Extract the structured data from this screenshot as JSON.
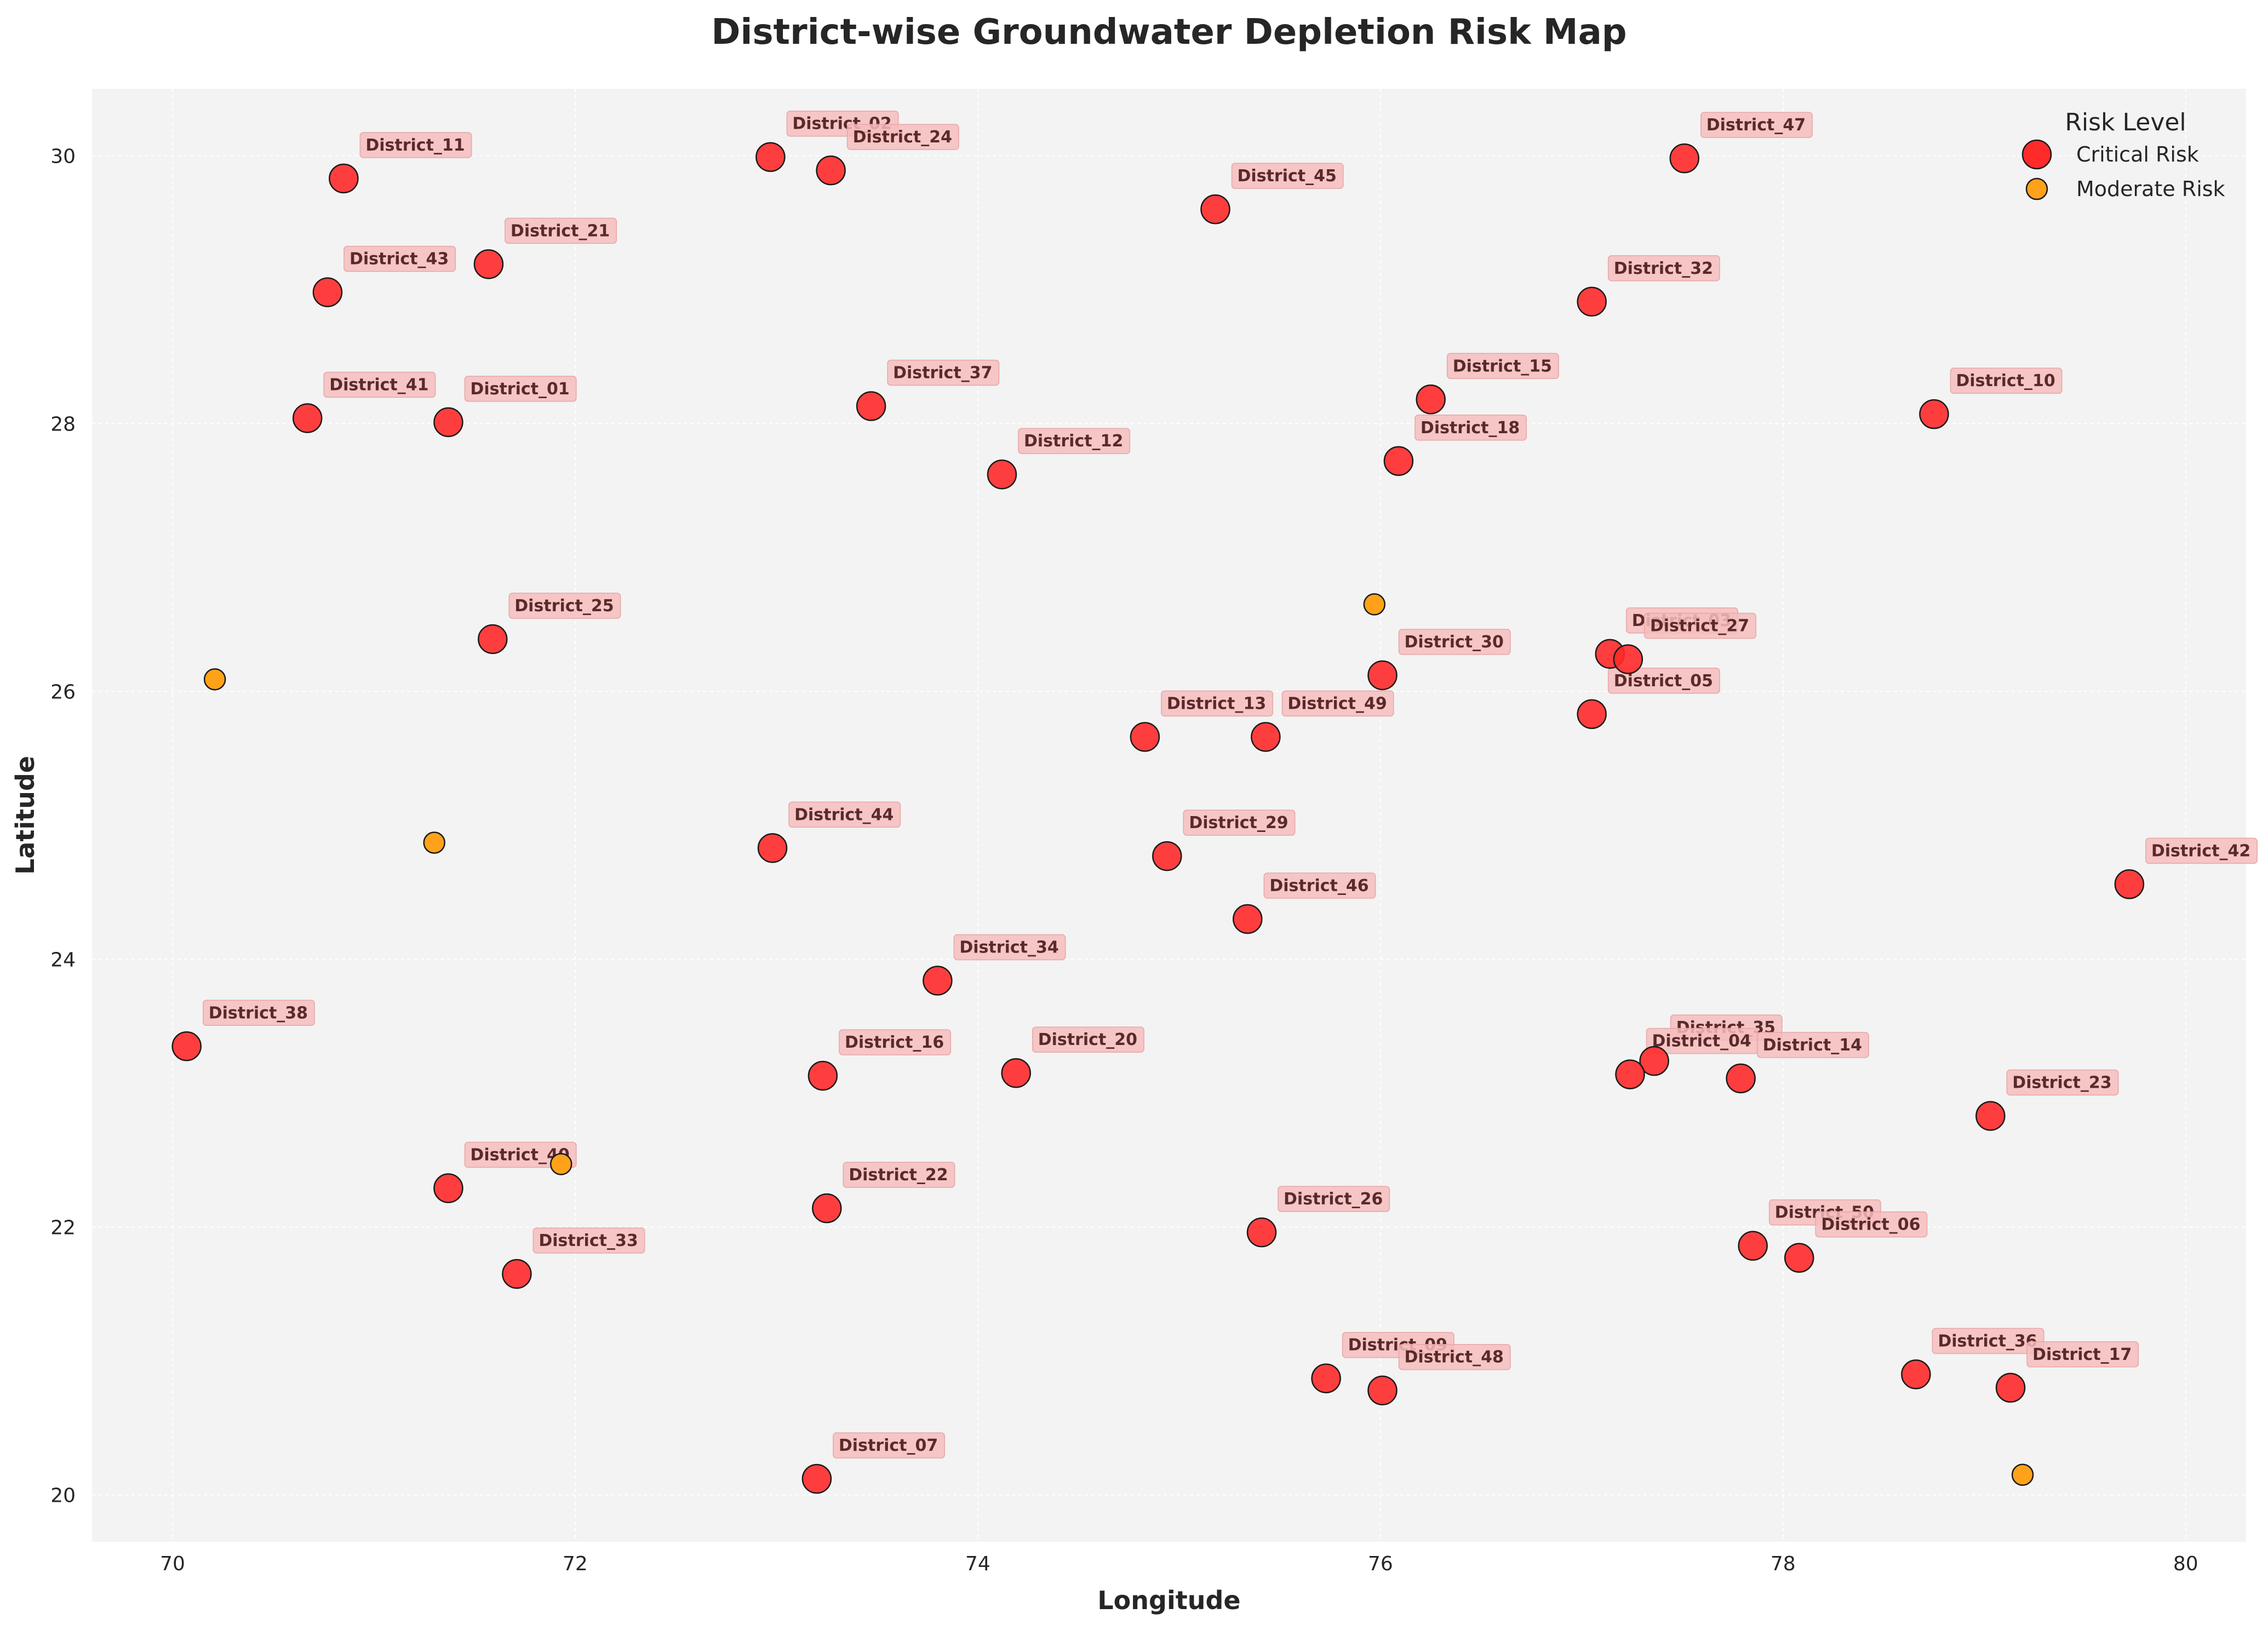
{
  "chart_data": {
    "type": "scatter",
    "title": "District-wise Groundwater Depletion Risk Map",
    "xlabel": "Longitude",
    "ylabel": "Latitude",
    "xlim": [
      69.6,
      80.3
    ],
    "ylim": [
      19.65,
      30.5
    ],
    "xticks": [
      70,
      72,
      74,
      76,
      78,
      80
    ],
    "yticks": [
      20,
      22,
      24,
      26,
      28,
      30
    ],
    "grid": true,
    "legend": {
      "title": "Risk Level",
      "position": "top-right"
    },
    "colors": {
      "critical": "#ff2a2a",
      "moderate": "#ffa21a",
      "background": "#f3f3f3",
      "label_box": "#f6bcbc"
    },
    "series": [
      {
        "name": "Critical Risk",
        "points": [
          {
            "label": "District_11",
            "x": 70.85,
            "y": 29.83
          },
          {
            "label": "District_02",
            "x": 72.97,
            "y": 29.99
          },
          {
            "label": "District_24",
            "x": 73.27,
            "y": 29.89
          },
          {
            "label": "District_43",
            "x": 70.77,
            "y": 28.98
          },
          {
            "label": "District_21",
            "x": 71.57,
            "y": 29.19
          },
          {
            "label": "District_41",
            "x": 70.67,
            "y": 28.04
          },
          {
            "label": "District_01",
            "x": 71.37,
            "y": 28.01
          },
          {
            "label": "District_37",
            "x": 73.47,
            "y": 28.13
          },
          {
            "label": "District_12",
            "x": 74.12,
            "y": 27.62
          },
          {
            "label": "District_45",
            "x": 75.18,
            "y": 29.6
          },
          {
            "label": "District_47",
            "x": 77.51,
            "y": 29.98
          },
          {
            "label": "District_32",
            "x": 77.05,
            "y": 28.91
          },
          {
            "label": "District_15",
            "x": 76.25,
            "y": 28.18
          },
          {
            "label": "District_18",
            "x": 76.09,
            "y": 27.72
          },
          {
            "label": "District_10",
            "x": 78.75,
            "y": 28.07
          },
          {
            "label": "District_25",
            "x": 71.59,
            "y": 26.39
          },
          {
            "label": "District_30",
            "x": 76.01,
            "y": 26.12
          },
          {
            "label": "District_03",
            "x": 77.14,
            "y": 26.28
          },
          {
            "label": "District_27",
            "x": 77.23,
            "y": 26.24
          },
          {
            "label": "District_05",
            "x": 77.05,
            "y": 25.83
          },
          {
            "label": "District_13",
            "x": 74.83,
            "y": 25.66
          },
          {
            "label": "District_49",
            "x": 75.43,
            "y": 25.66
          },
          {
            "label": "District_44",
            "x": 72.98,
            "y": 24.83
          },
          {
            "label": "District_29",
            "x": 74.94,
            "y": 24.77
          },
          {
            "label": "District_46",
            "x": 75.34,
            "y": 24.3
          },
          {
            "label": "District_42",
            "x": 79.72,
            "y": 24.56
          },
          {
            "label": "District_34",
            "x": 73.8,
            "y": 23.84
          },
          {
            "label": "District_38",
            "x": 70.07,
            "y": 23.35
          },
          {
            "label": "District_16",
            "x": 73.23,
            "y": 23.13
          },
          {
            "label": "District_20",
            "x": 74.19,
            "y": 23.15
          },
          {
            "label": "District_35",
            "x": 77.36,
            "y": 23.24
          },
          {
            "label": "District_04",
            "x": 77.24,
            "y": 23.14
          },
          {
            "label": "District_14",
            "x": 77.79,
            "y": 23.11
          },
          {
            "label": "District_23",
            "x": 79.03,
            "y": 22.83
          },
          {
            "label": "District_40",
            "x": 71.37,
            "y": 22.29
          },
          {
            "label": "District_22",
            "x": 73.25,
            "y": 22.14
          },
          {
            "label": "District_26",
            "x": 75.41,
            "y": 21.96
          },
          {
            "label": "District_33",
            "x": 71.71,
            "y": 21.65
          },
          {
            "label": "District_50",
            "x": 77.85,
            "y": 21.86
          },
          {
            "label": "District_06",
            "x": 78.08,
            "y": 21.77
          },
          {
            "label": "District_09",
            "x": 75.73,
            "y": 20.87
          },
          {
            "label": "District_48",
            "x": 76.01,
            "y": 20.78
          },
          {
            "label": "District_36",
            "x": 78.66,
            "y": 20.9
          },
          {
            "label": "District_17",
            "x": 79.13,
            "y": 20.8
          },
          {
            "label": "District_07",
            "x": 73.2,
            "y": 20.12
          }
        ]
      },
      {
        "name": "Moderate Risk",
        "points": [
          {
            "x": 70.21,
            "y": 26.09
          },
          {
            "x": 71.3,
            "y": 24.87
          },
          {
            "x": 75.97,
            "y": 26.65
          },
          {
            "x": 71.93,
            "y": 22.47
          },
          {
            "x": 79.19,
            "y": 20.15
          }
        ]
      }
    ]
  }
}
